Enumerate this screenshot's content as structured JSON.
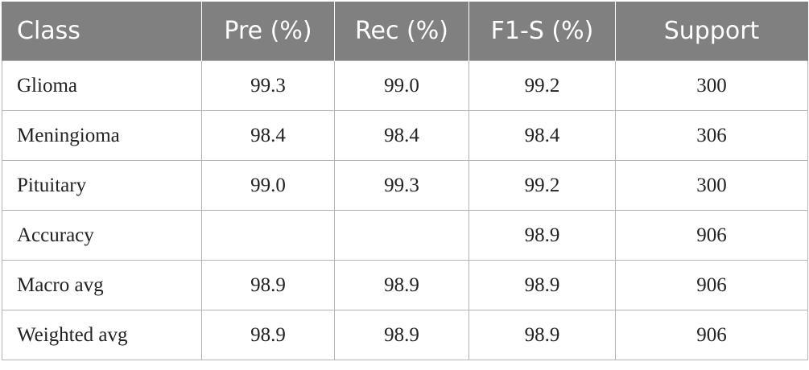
{
  "table": {
    "headers": [
      "Class",
      "Pre (%)",
      "Rec (%)",
      "F1-S (%)",
      "Support"
    ],
    "rows": [
      [
        "Glioma",
        "99.3",
        "99.0",
        "99.2",
        "300"
      ],
      [
        "Meningioma",
        "98.4",
        "98.4",
        "98.4",
        "306"
      ],
      [
        "Pituitary",
        "99.0",
        "99.3",
        "99.2",
        "300"
      ],
      [
        "Accuracy",
        "",
        "",
        "98.9",
        "906"
      ],
      [
        "Macro avg",
        "98.9",
        "98.9",
        "98.9",
        "906"
      ],
      [
        "Weighted avg",
        "98.9",
        "98.9",
        "98.9",
        "906"
      ]
    ]
  },
  "colors": {
    "header_bg": "#808080",
    "header_text": "#ffffff",
    "grid": "#b3b3b3",
    "body_text": "#222222"
  }
}
